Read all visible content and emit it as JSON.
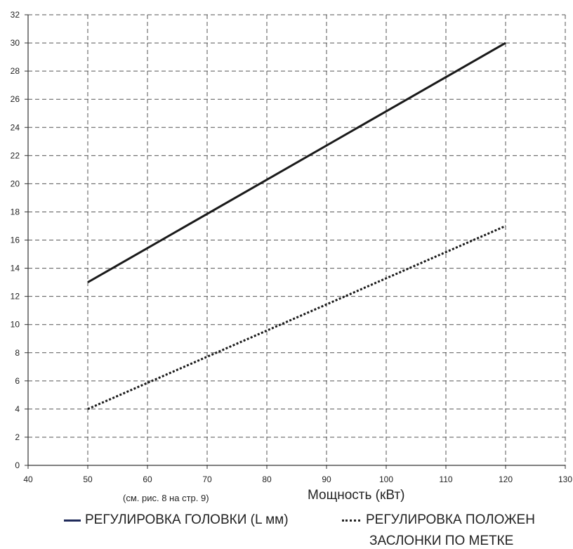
{
  "chart_data": {
    "type": "line",
    "xlabel": "Мощность (кВт)",
    "note": "(см. рис. 8 на стр. 9)",
    "xlim": [
      40,
      130
    ],
    "ylim": [
      0,
      32
    ],
    "x_ticks": [
      "40",
      "50",
      "60",
      "70",
      "80",
      "90",
      "100",
      "110",
      "120",
      "130"
    ],
    "y_ticks": [
      "0",
      "2",
      "4",
      "6",
      "8",
      "10",
      "12",
      "14",
      "16",
      "18",
      "20",
      "22",
      "24",
      "26",
      "28",
      "30",
      "32"
    ],
    "grid": true,
    "grid_style": "dashed",
    "series": [
      {
        "name": "РЕГУЛИРОВКА ГОЛОВКИ (L мм)",
        "style": "solid",
        "color": "#1a1a1a",
        "points": [
          [
            50,
            13
          ],
          [
            120,
            30
          ]
        ]
      },
      {
        "name": "РЕГУЛИРОВКА ПОЛОЖЕН",
        "name_line2": "ЗАСЛОНКИ ПО МЕТКЕ",
        "style": "dotted",
        "color": "#1a1a1a",
        "points": [
          [
            50,
            4
          ],
          [
            120,
            17
          ]
        ]
      }
    ]
  }
}
